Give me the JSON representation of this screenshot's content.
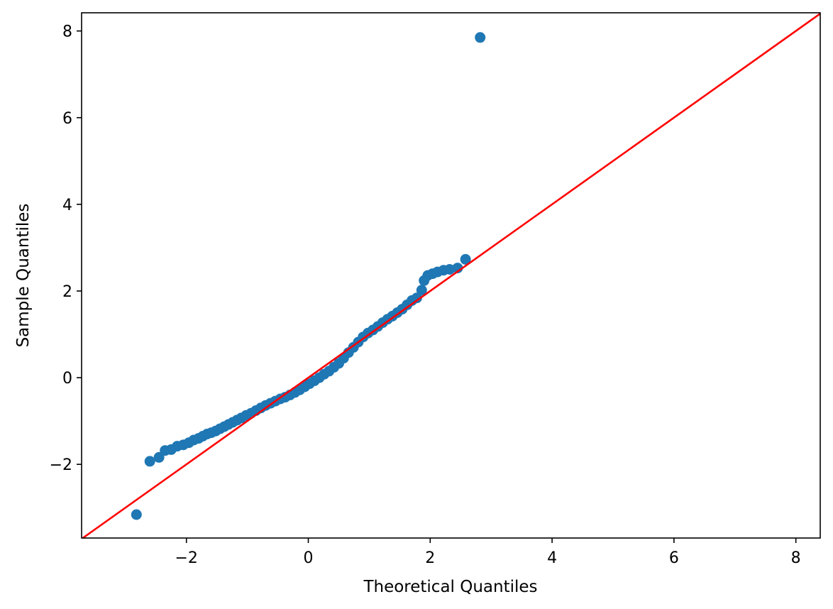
{
  "chart_data": {
    "type": "scatter",
    "title": "",
    "xlabel": "Theoretical Quantiles",
    "ylabel": "Sample Quantiles",
    "xlim": [
      -3.72,
      8.4
    ],
    "ylim": [
      -3.7,
      8.42
    ],
    "xticks": [
      -2,
      0,
      2,
      4,
      6,
      8
    ],
    "yticks": [
      -2,
      0,
      2,
      4,
      6,
      8
    ],
    "grid": false,
    "legend": "none",
    "colors": {
      "points": "#1f77b4",
      "reference_line": "#ff0000",
      "axes": "#000000"
    },
    "reference_line": {
      "kind": "45-degree",
      "slope": 1,
      "intercept": 0
    },
    "series": [
      {
        "points": [
          [
            -2.82,
            -3.16
          ],
          [
            -2.6,
            -1.93
          ],
          [
            -2.45,
            -1.84
          ],
          [
            -2.35,
            -1.68
          ],
          [
            -2.25,
            -1.66
          ],
          [
            -2.15,
            -1.58
          ],
          [
            -2.05,
            -1.55
          ],
          [
            -1.96,
            -1.5
          ],
          [
            -1.88,
            -1.44
          ],
          [
            -1.8,
            -1.4
          ],
          [
            -1.73,
            -1.35
          ],
          [
            -1.66,
            -1.3
          ],
          [
            -1.59,
            -1.27
          ],
          [
            -1.52,
            -1.23
          ],
          [
            -1.45,
            -1.18
          ],
          [
            -1.38,
            -1.13
          ],
          [
            -1.31,
            -1.08
          ],
          [
            -1.24,
            -1.03
          ],
          [
            -1.17,
            -0.98
          ],
          [
            -1.1,
            -0.93
          ],
          [
            -1.02,
            -0.87
          ],
          [
            -0.94,
            -0.82
          ],
          [
            -0.86,
            -0.76
          ],
          [
            -0.78,
            -0.7
          ],
          [
            -0.7,
            -0.64
          ],
          [
            -0.62,
            -0.59
          ],
          [
            -0.54,
            -0.54
          ],
          [
            -0.46,
            -0.49
          ],
          [
            -0.38,
            -0.45
          ],
          [
            -0.3,
            -0.4
          ],
          [
            -0.22,
            -0.34
          ],
          [
            -0.14,
            -0.28
          ],
          [
            -0.06,
            -0.21
          ],
          [
            0.02,
            -0.14
          ],
          [
            0.1,
            -0.07
          ],
          [
            0.18,
            0.0
          ],
          [
            0.26,
            0.08
          ],
          [
            0.34,
            0.15
          ],
          [
            0.42,
            0.24
          ],
          [
            0.5,
            0.33
          ],
          [
            0.58,
            0.45
          ],
          [
            0.66,
            0.58
          ],
          [
            0.74,
            0.7
          ],
          [
            0.82,
            0.82
          ],
          [
            0.9,
            0.94
          ],
          [
            0.98,
            1.03
          ],
          [
            1.06,
            1.1
          ],
          [
            1.14,
            1.18
          ],
          [
            1.22,
            1.27
          ],
          [
            1.3,
            1.35
          ],
          [
            1.38,
            1.42
          ],
          [
            1.46,
            1.5
          ],
          [
            1.54,
            1.58
          ],
          [
            1.62,
            1.68
          ],
          [
            1.7,
            1.78
          ],
          [
            1.78,
            1.84
          ],
          [
            1.86,
            2.02
          ],
          [
            1.9,
            2.24
          ],
          [
            1.96,
            2.36
          ],
          [
            2.04,
            2.4
          ],
          [
            2.12,
            2.44
          ],
          [
            2.22,
            2.48
          ],
          [
            2.32,
            2.5
          ],
          [
            2.45,
            2.53
          ],
          [
            2.58,
            2.73
          ],
          [
            2.82,
            7.85
          ]
        ]
      }
    ]
  }
}
